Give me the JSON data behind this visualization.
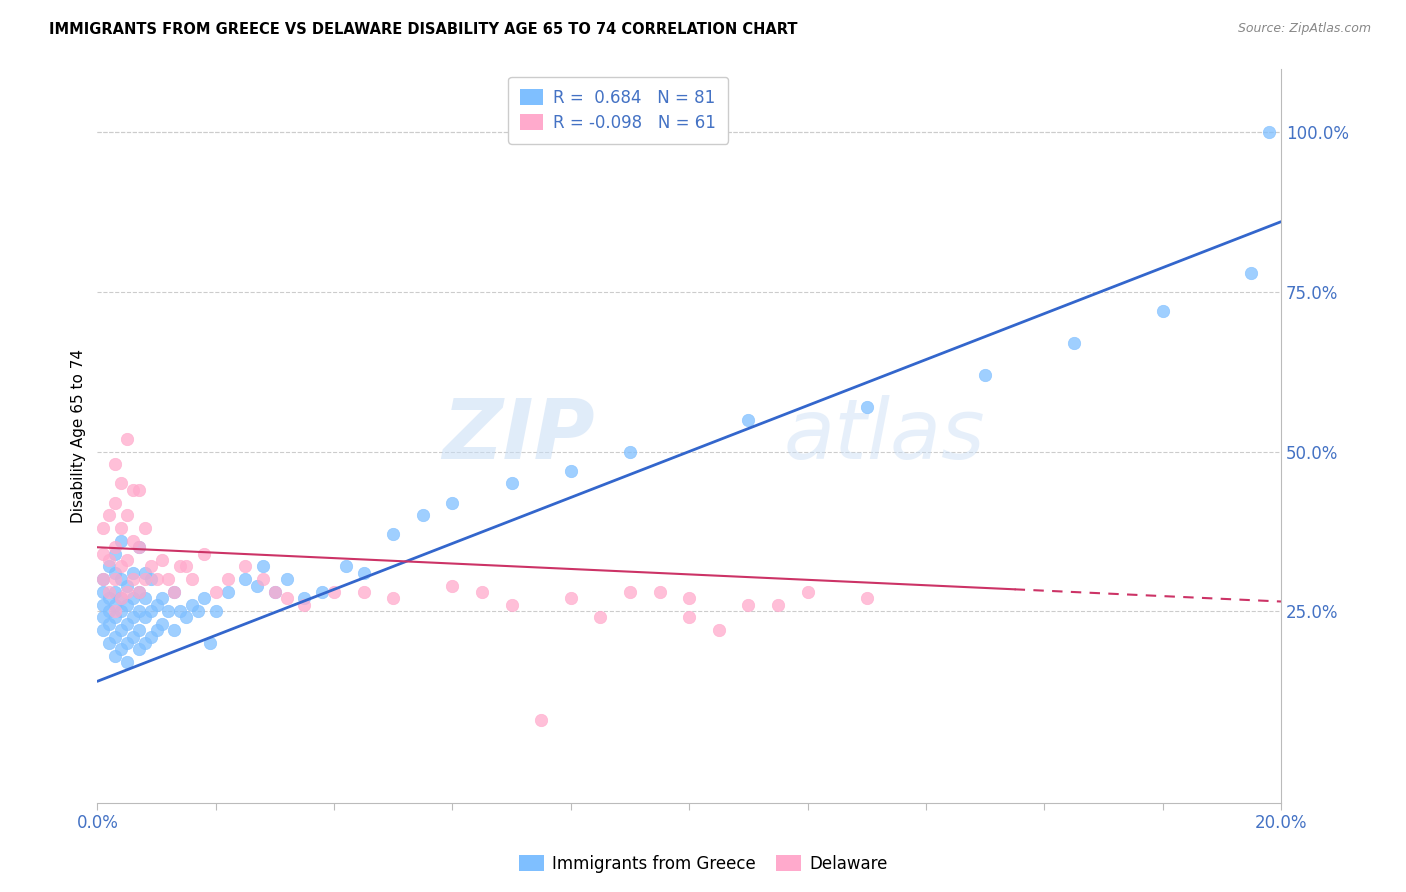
{
  "title": "IMMIGRANTS FROM GREECE VS DELAWARE DISABILITY AGE 65 TO 74 CORRELATION CHART",
  "source": "Source: ZipAtlas.com",
  "ylabel": "Disability Age 65 to 74",
  "right_yticks": [
    "100.0%",
    "75.0%",
    "50.0%",
    "25.0%"
  ],
  "right_ytick_vals": [
    1.0,
    0.75,
    0.5,
    0.25
  ],
  "blue_color": "#7fbfff",
  "pink_color": "#ffaacc",
  "blue_line_color": "#3366cc",
  "pink_line_color": "#cc3366",
  "blue_r": 0.684,
  "blue_n": 81,
  "pink_r": -0.098,
  "pink_n": 61,
  "blue_line_x0": 0.0,
  "blue_line_y0": 0.14,
  "blue_line_x1": 0.2,
  "blue_line_y1": 0.86,
  "pink_line_x0": 0.0,
  "pink_line_y0": 0.35,
  "pink_line_x1": 0.2,
  "pink_line_y1": 0.265,
  "xmin": 0.0,
  "xmax": 0.2,
  "ymin": -0.05,
  "ymax": 1.1,
  "watermark": "ZIPatlas",
  "blue_scatter_x": [
    0.001,
    0.001,
    0.001,
    0.001,
    0.001,
    0.002,
    0.002,
    0.002,
    0.002,
    0.002,
    0.003,
    0.003,
    0.003,
    0.003,
    0.003,
    0.003,
    0.003,
    0.004,
    0.004,
    0.004,
    0.004,
    0.004,
    0.004,
    0.005,
    0.005,
    0.005,
    0.005,
    0.005,
    0.006,
    0.006,
    0.006,
    0.006,
    0.007,
    0.007,
    0.007,
    0.007,
    0.007,
    0.008,
    0.008,
    0.008,
    0.008,
    0.009,
    0.009,
    0.009,
    0.01,
    0.01,
    0.011,
    0.011,
    0.012,
    0.013,
    0.013,
    0.014,
    0.015,
    0.016,
    0.017,
    0.018,
    0.019,
    0.02,
    0.022,
    0.025,
    0.027,
    0.028,
    0.03,
    0.032,
    0.035,
    0.038,
    0.042,
    0.045,
    0.05,
    0.055,
    0.06,
    0.07,
    0.08,
    0.09,
    0.11,
    0.13,
    0.15,
    0.165,
    0.18,
    0.195,
    0.198
  ],
  "blue_scatter_y": [
    0.22,
    0.24,
    0.26,
    0.28,
    0.3,
    0.2,
    0.23,
    0.25,
    0.27,
    0.32,
    0.18,
    0.21,
    0.24,
    0.26,
    0.28,
    0.31,
    0.34,
    0.19,
    0.22,
    0.25,
    0.27,
    0.3,
    0.36,
    0.17,
    0.2,
    0.23,
    0.26,
    0.29,
    0.21,
    0.24,
    0.27,
    0.31,
    0.19,
    0.22,
    0.25,
    0.28,
    0.35,
    0.2,
    0.24,
    0.27,
    0.31,
    0.21,
    0.25,
    0.3,
    0.22,
    0.26,
    0.23,
    0.27,
    0.25,
    0.22,
    0.28,
    0.25,
    0.24,
    0.26,
    0.25,
    0.27,
    0.2,
    0.25,
    0.28,
    0.3,
    0.29,
    0.32,
    0.28,
    0.3,
    0.27,
    0.28,
    0.32,
    0.31,
    0.37,
    0.4,
    0.42,
    0.45,
    0.47,
    0.5,
    0.55,
    0.57,
    0.62,
    0.67,
    0.72,
    0.78,
    1.0
  ],
  "pink_scatter_x": [
    0.001,
    0.001,
    0.001,
    0.002,
    0.002,
    0.002,
    0.003,
    0.003,
    0.003,
    0.003,
    0.003,
    0.004,
    0.004,
    0.004,
    0.004,
    0.005,
    0.005,
    0.005,
    0.005,
    0.006,
    0.006,
    0.006,
    0.007,
    0.007,
    0.007,
    0.008,
    0.008,
    0.009,
    0.01,
    0.011,
    0.012,
    0.013,
    0.014,
    0.015,
    0.016,
    0.018,
    0.02,
    0.022,
    0.025,
    0.028,
    0.03,
    0.032,
    0.035,
    0.04,
    0.045,
    0.05,
    0.06,
    0.065,
    0.07,
    0.08,
    0.09,
    0.1,
    0.11,
    0.12,
    0.13,
    0.1,
    0.105,
    0.115,
    0.095,
    0.085,
    0.075
  ],
  "pink_scatter_y": [
    0.3,
    0.34,
    0.38,
    0.28,
    0.33,
    0.4,
    0.25,
    0.3,
    0.35,
    0.42,
    0.48,
    0.27,
    0.32,
    0.38,
    0.45,
    0.28,
    0.33,
    0.4,
    0.52,
    0.3,
    0.36,
    0.44,
    0.28,
    0.35,
    0.44,
    0.3,
    0.38,
    0.32,
    0.3,
    0.33,
    0.3,
    0.28,
    0.32,
    0.32,
    0.3,
    0.34,
    0.28,
    0.3,
    0.32,
    0.3,
    0.28,
    0.27,
    0.26,
    0.28,
    0.28,
    0.27,
    0.29,
    0.28,
    0.26,
    0.27,
    0.28,
    0.27,
    0.26,
    0.28,
    0.27,
    0.24,
    0.22,
    0.26,
    0.28,
    0.24,
    0.08
  ]
}
